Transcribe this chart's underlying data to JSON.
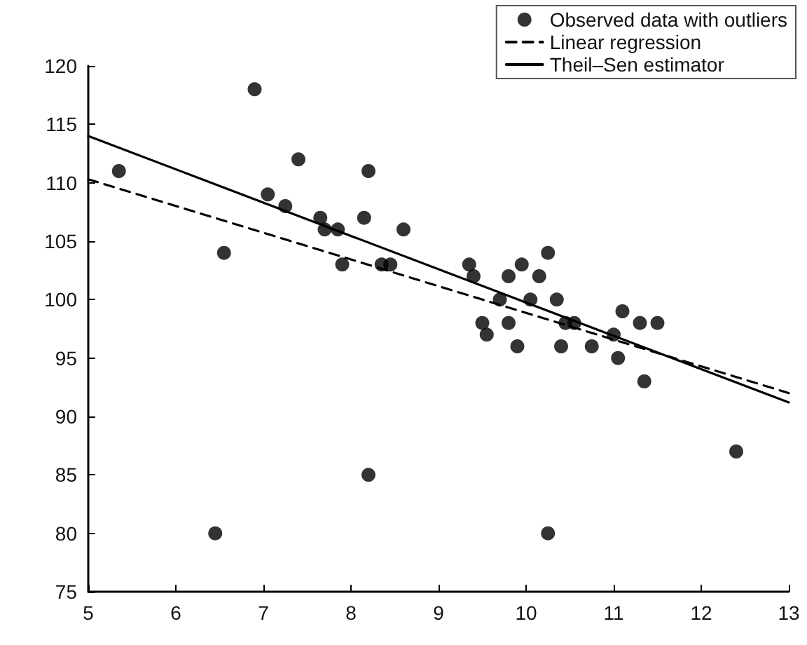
{
  "chart_data": {
    "type": "scatter",
    "xlim": [
      5,
      13
    ],
    "xticks": [
      5,
      6,
      7,
      8,
      9,
      10,
      11,
      12,
      13
    ],
    "ylim": [
      75,
      120
    ],
    "yticks": [
      75,
      80,
      85,
      90,
      95,
      100,
      105,
      110,
      115,
      120
    ],
    "grid": false,
    "legend": "top right",
    "series": [
      {
        "name": "Observed data with outliers",
        "color": "#000000",
        "marker": "circle",
        "x": [
          5.35,
          6.45,
          6.55,
          6.9,
          7.05,
          7.25,
          7.4,
          7.65,
          7.7,
          7.85,
          7.9,
          8.15,
          8.2,
          8.2,
          8.35,
          8.45,
          8.6,
          9.35,
          9.4,
          9.5,
          9.55,
          9.7,
          9.8,
          9.8,
          9.9,
          9.95,
          10.05,
          10.15,
          10.25,
          10.25,
          10.35,
          10.4,
          10.45,
          10.55,
          10.75,
          11.0,
          11.05,
          11.1,
          11.3,
          11.35,
          11.5,
          12.4
        ],
        "values": [
          111,
          80,
          104,
          118,
          109,
          108,
          112,
          107,
          106,
          106,
          103,
          107,
          111,
          85,
          103,
          103,
          106,
          103,
          102,
          98,
          97,
          100,
          98,
          102,
          96,
          103,
          100,
          102,
          104,
          80,
          100,
          96,
          98,
          98,
          96,
          97,
          95,
          99,
          98,
          93,
          98,
          87
        ]
      },
      {
        "name": "Linear regression",
        "type": "line",
        "color": "#000000",
        "line_style": "dashed",
        "marker": "none",
        "x": [
          5,
          13
        ],
        "values": [
          110.3,
          92
        ]
      },
      {
        "name": "Theil–Sen estimator",
        "type": "line",
        "color": "#000000",
        "line_style": "solid",
        "marker": "none",
        "x": [
          5,
          13
        ],
        "values": [
          114,
          91.2
        ]
      }
    ]
  }
}
